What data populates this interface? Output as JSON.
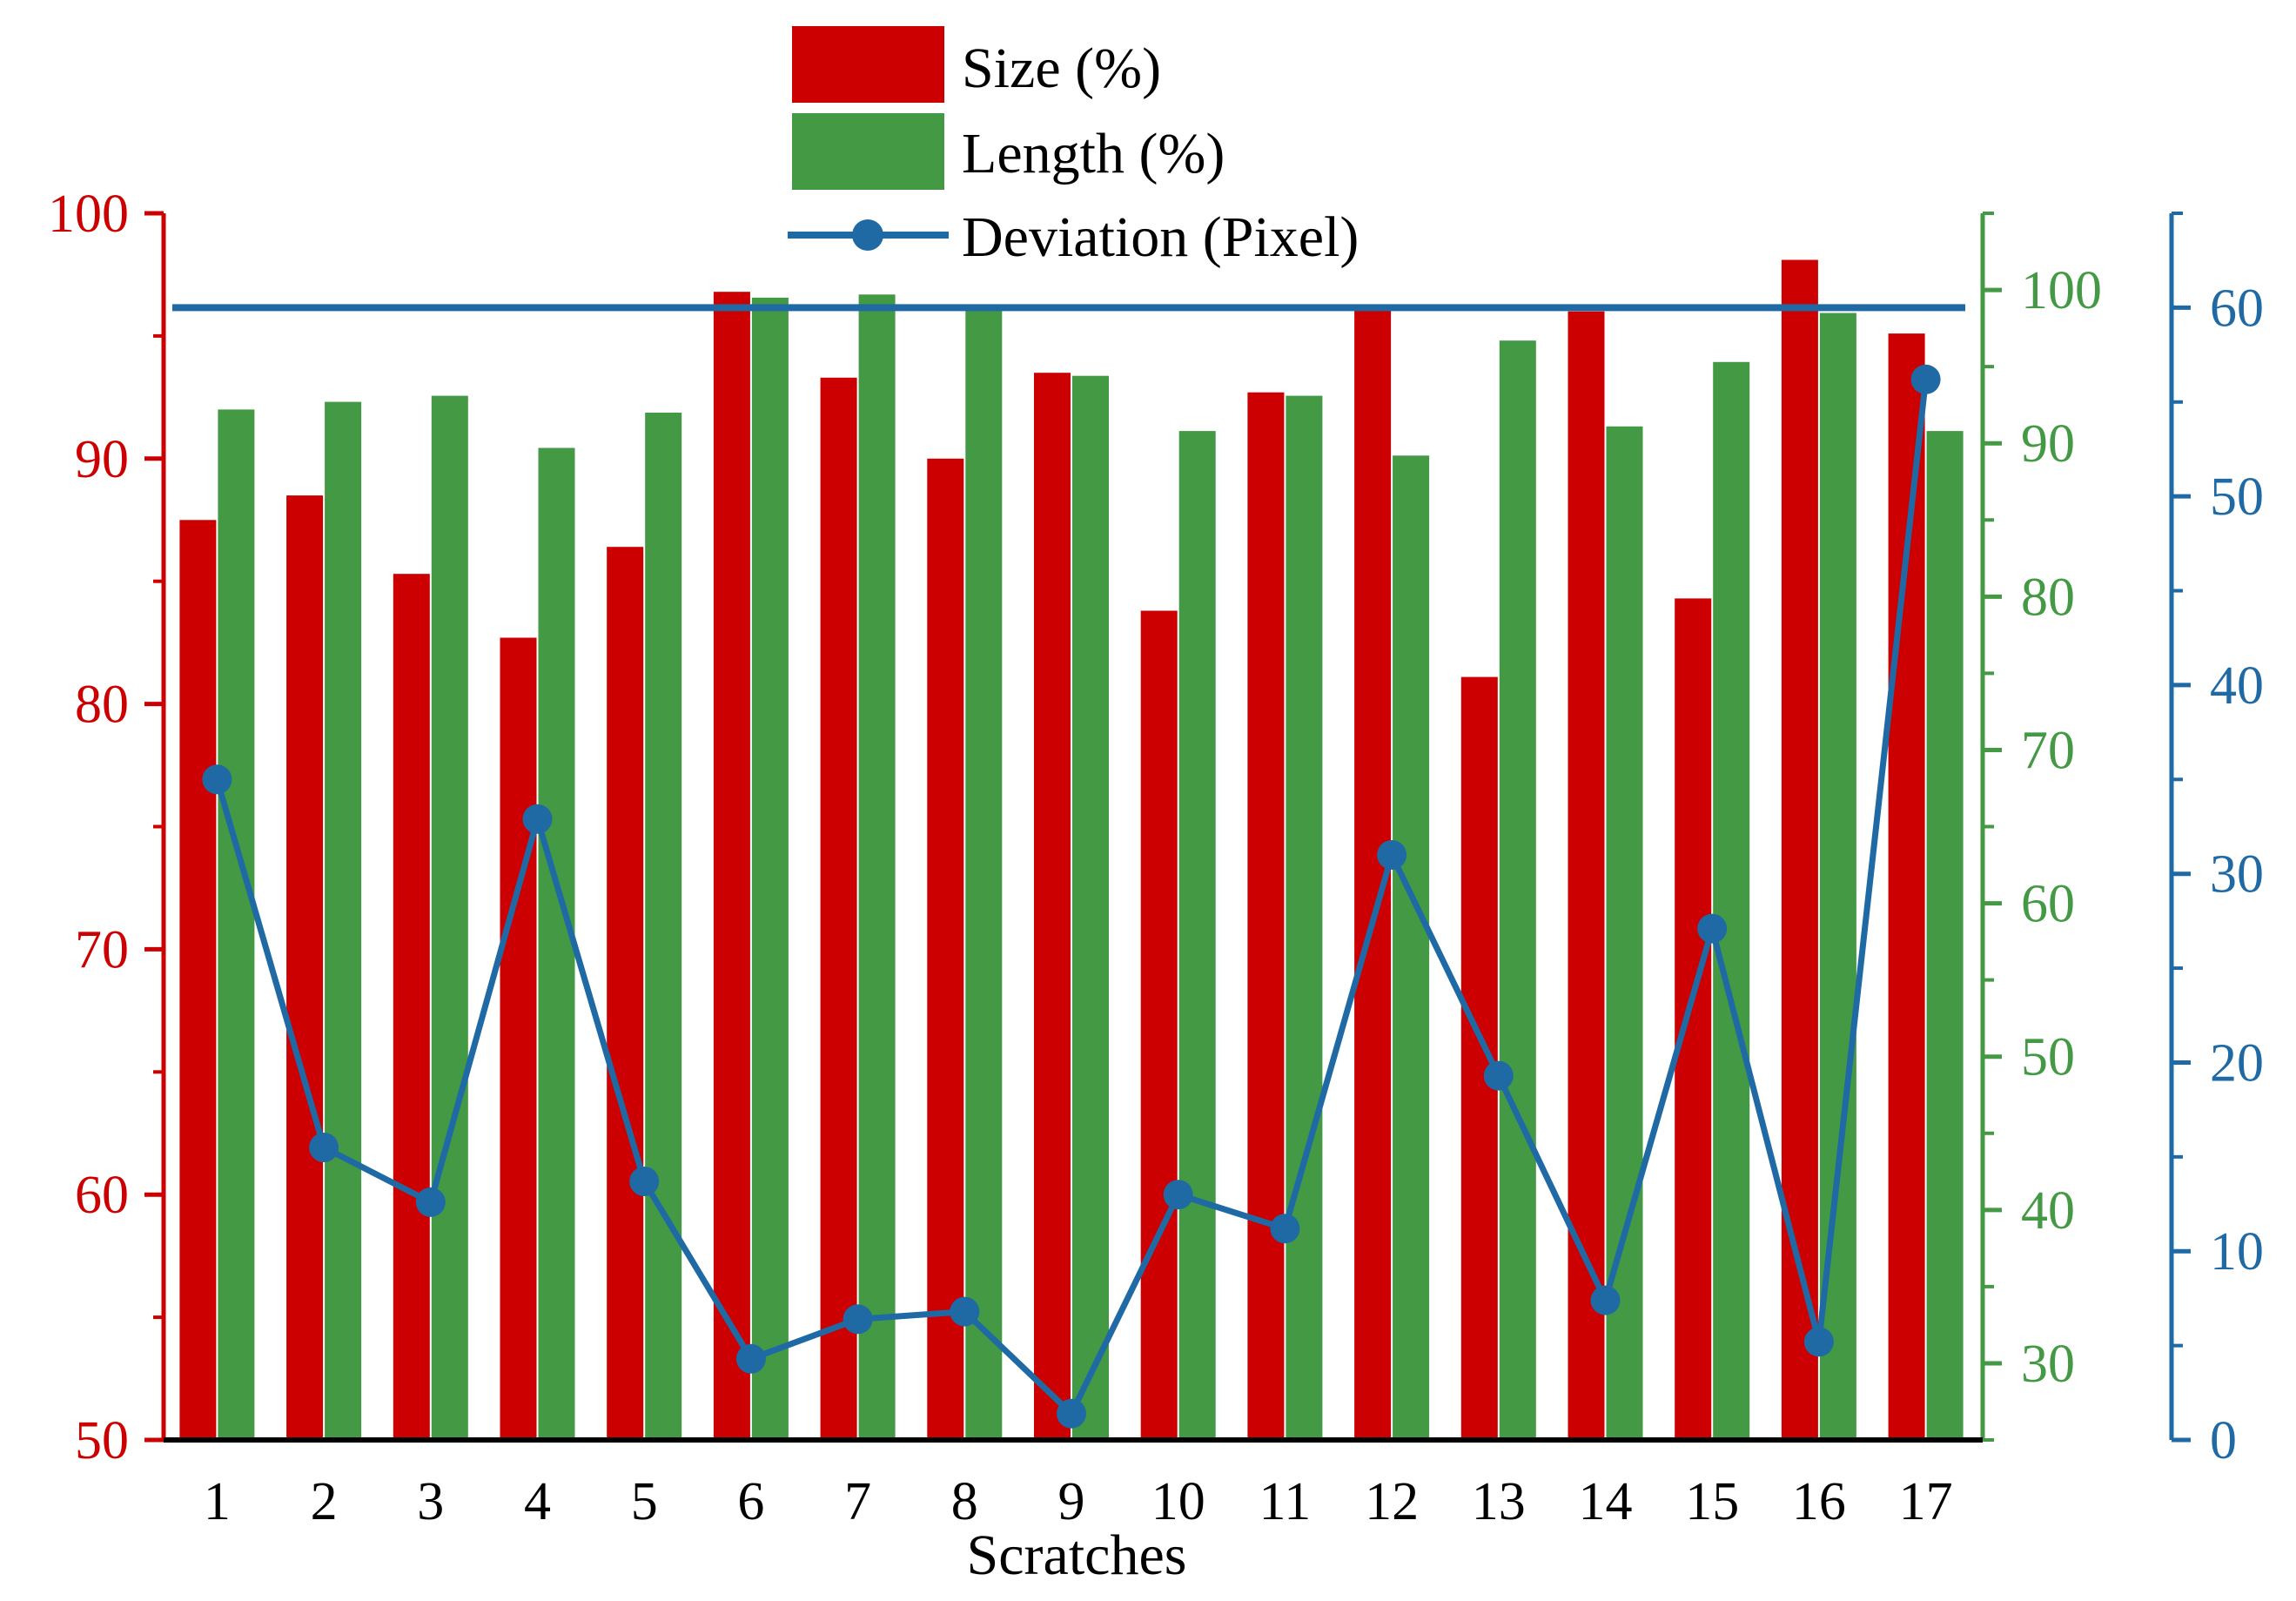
{
  "chart_data": {
    "type": "bar",
    "title": "",
    "xlabel": "Scratches",
    "categories": [
      "1",
      "2",
      "3",
      "4",
      "5",
      "6",
      "7",
      "8",
      "9",
      "10",
      "11",
      "12",
      "13",
      "14",
      "15",
      "16",
      "17"
    ],
    "series": [
      {
        "name": "Size (%)",
        "type": "bar",
        "axis": "left",
        "color": "#cc0000",
        "values": [
          87.5,
          88.5,
          85.3,
          82.7,
          86.4,
          96.8,
          93.3,
          90.0,
          93.5,
          83.8,
          92.7,
          96.1,
          81.1,
          96.0,
          84.3,
          98.1,
          95.1
        ]
      },
      {
        "name": "Length (%)",
        "type": "bar",
        "axis": "right1",
        "color": "#449944",
        "values": [
          92.2,
          92.7,
          93.1,
          89.7,
          92.0,
          99.5,
          99.7,
          98.9,
          94.4,
          90.8,
          93.1,
          89.2,
          96.7,
          91.1,
          95.3,
          98.5,
          90.8
        ]
      },
      {
        "name": "Deviation (Pixel)",
        "type": "line",
        "axis": "right2",
        "color": "#1f6aa5",
        "values": [
          35.0,
          15.5,
          12.6,
          32.9,
          13.7,
          4.3,
          6.4,
          6.8,
          1.4,
          13.0,
          11.2,
          31.0,
          19.3,
          7.4,
          27.1,
          5.2,
          56.2
        ]
      }
    ],
    "reference_line": {
      "axis": "right2",
      "value": 60,
      "color": "#1f6aa5"
    },
    "axes": {
      "left": {
        "ylim": [
          50,
          100
        ],
        "ticks": [
          "50",
          "60",
          "70",
          "80",
          "90",
          "100"
        ],
        "color": "#cc0000"
      },
      "right1": {
        "ylim": [
          25,
          105
        ],
        "ticks": [
          "30",
          "40",
          "50",
          "60",
          "70",
          "80",
          "90",
          "100"
        ],
        "color": "#449944"
      },
      "right2": {
        "ylim": [
          0,
          65
        ],
        "ticks": [
          "0",
          "10",
          "20",
          "30",
          "40",
          "50",
          "60"
        ],
        "color": "#1f6aa5"
      }
    },
    "legend": {
      "placement": "top-center",
      "entries": [
        "Size (%)",
        "Length (%)",
        "Deviation (Pixel)"
      ]
    }
  }
}
